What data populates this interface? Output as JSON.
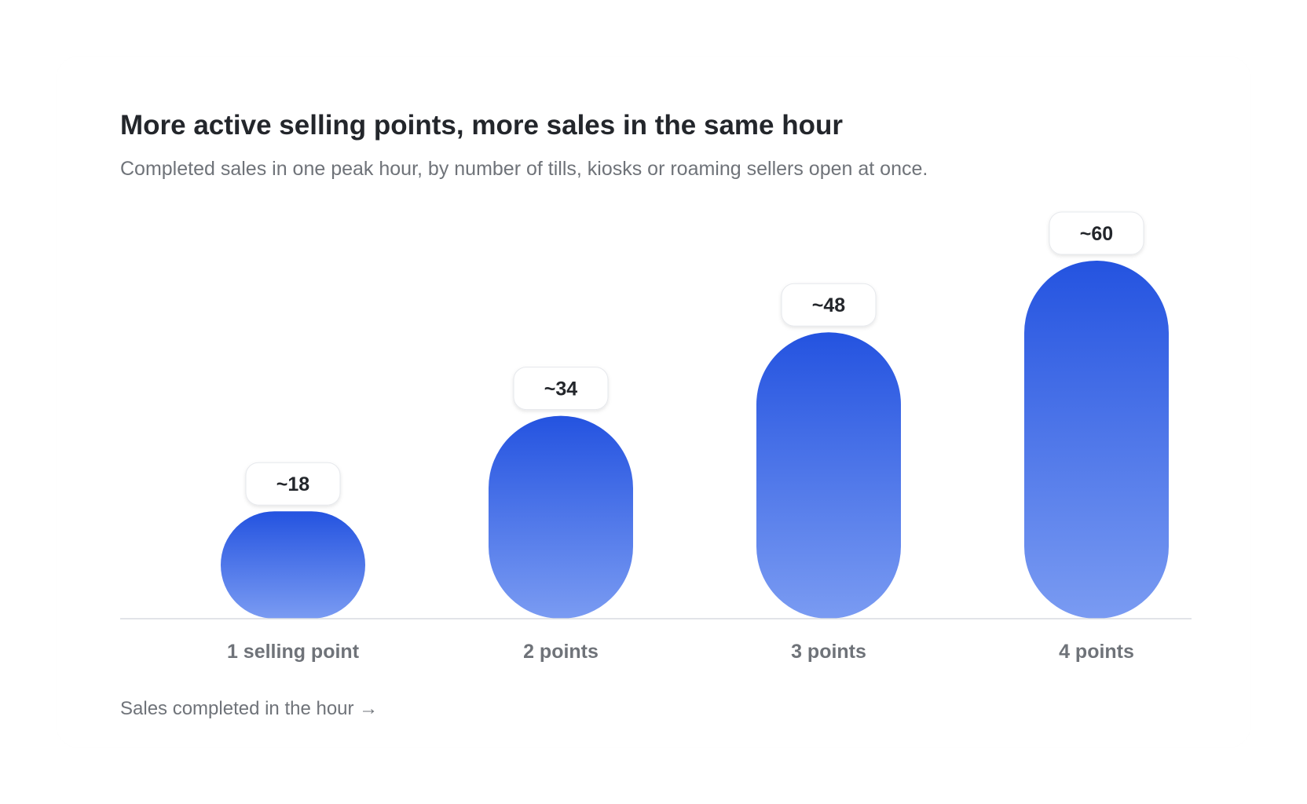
{
  "title": "More active selling points, more sales in the same hour",
  "subtitle": "Completed sales in one peak hour, by number of tills, kiosks or roaming sellers open at once.",
  "x_caption": "Sales completed in the hour →",
  "colors": {
    "bar_top": "#2453e0",
    "bar_bottom": "#7a9bf2",
    "baseline": "#d9dce1",
    "value_label": "#23262b",
    "category_label": "#6f7379"
  },
  "chart_data": {
    "type": "bar",
    "categories": [
      "1 selling point",
      "2 points",
      "3 points",
      "4 points"
    ],
    "values": [
      18,
      34,
      48,
      60
    ],
    "data_labels": [
      "~18",
      "~34",
      "~48",
      "~60"
    ],
    "title": "More active selling points, more sales in the same hour",
    "subtitle": "Completed sales in one peak hour, by number of tills, kiosks or roaming sellers open at once.",
    "xlabel": "Sales completed in the hour →",
    "ylabel": "",
    "ylim": [
      0,
      60
    ],
    "grid": false,
    "legend": "none"
  }
}
